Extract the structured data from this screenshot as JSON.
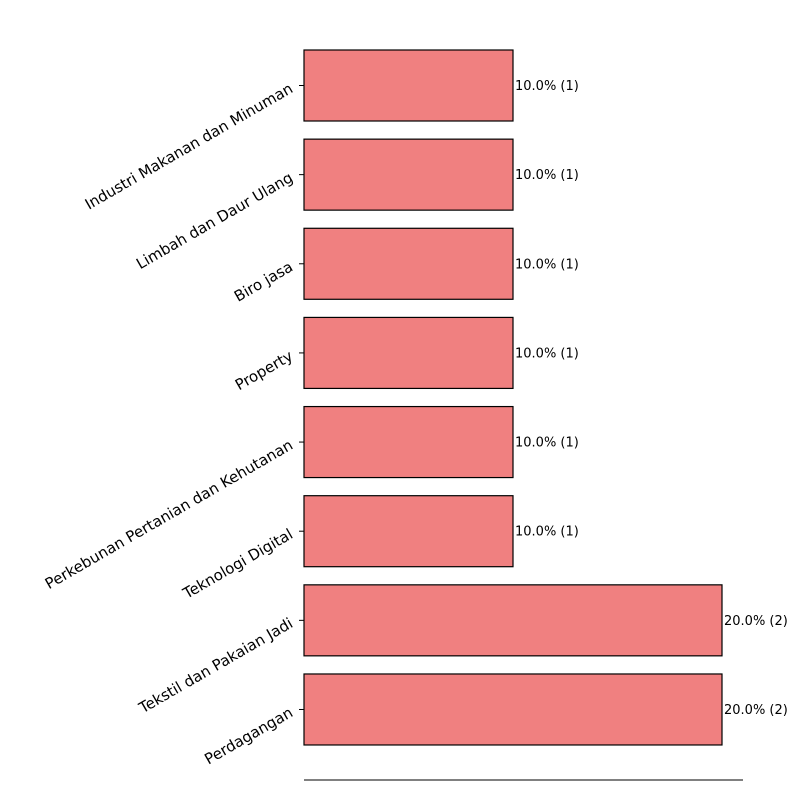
{
  "chart_data": {
    "type": "bar",
    "orientation": "horizontal",
    "categories": [
      "Industri Makanan dan Minuman",
      "Limbah dan Daur Ulang",
      "Biro jasa",
      "Property",
      "Perkebunan Pertanian dan Kehutanan",
      "Teknologi Digital",
      "Tekstil dan Pakaian Jadi",
      "Perdagangan"
    ],
    "values": [
      10.0,
      10.0,
      10.0,
      10.0,
      10.0,
      10.0,
      20.0,
      20.0
    ],
    "counts": [
      1,
      1,
      1,
      1,
      1,
      1,
      2,
      2
    ],
    "data_labels": [
      "10.0% (1)",
      "10.0% (1)",
      "10.0% (1)",
      "10.0% (1)",
      "10.0% (1)",
      "10.0% (1)",
      "20.0% (2)",
      "20.0% (2)"
    ],
    "xlim": [
      0,
      21
    ],
    "colors": {
      "bar_fill": "#f08080",
      "bar_edge": "#000000",
      "axis": "#000000"
    },
    "grid": false
  }
}
